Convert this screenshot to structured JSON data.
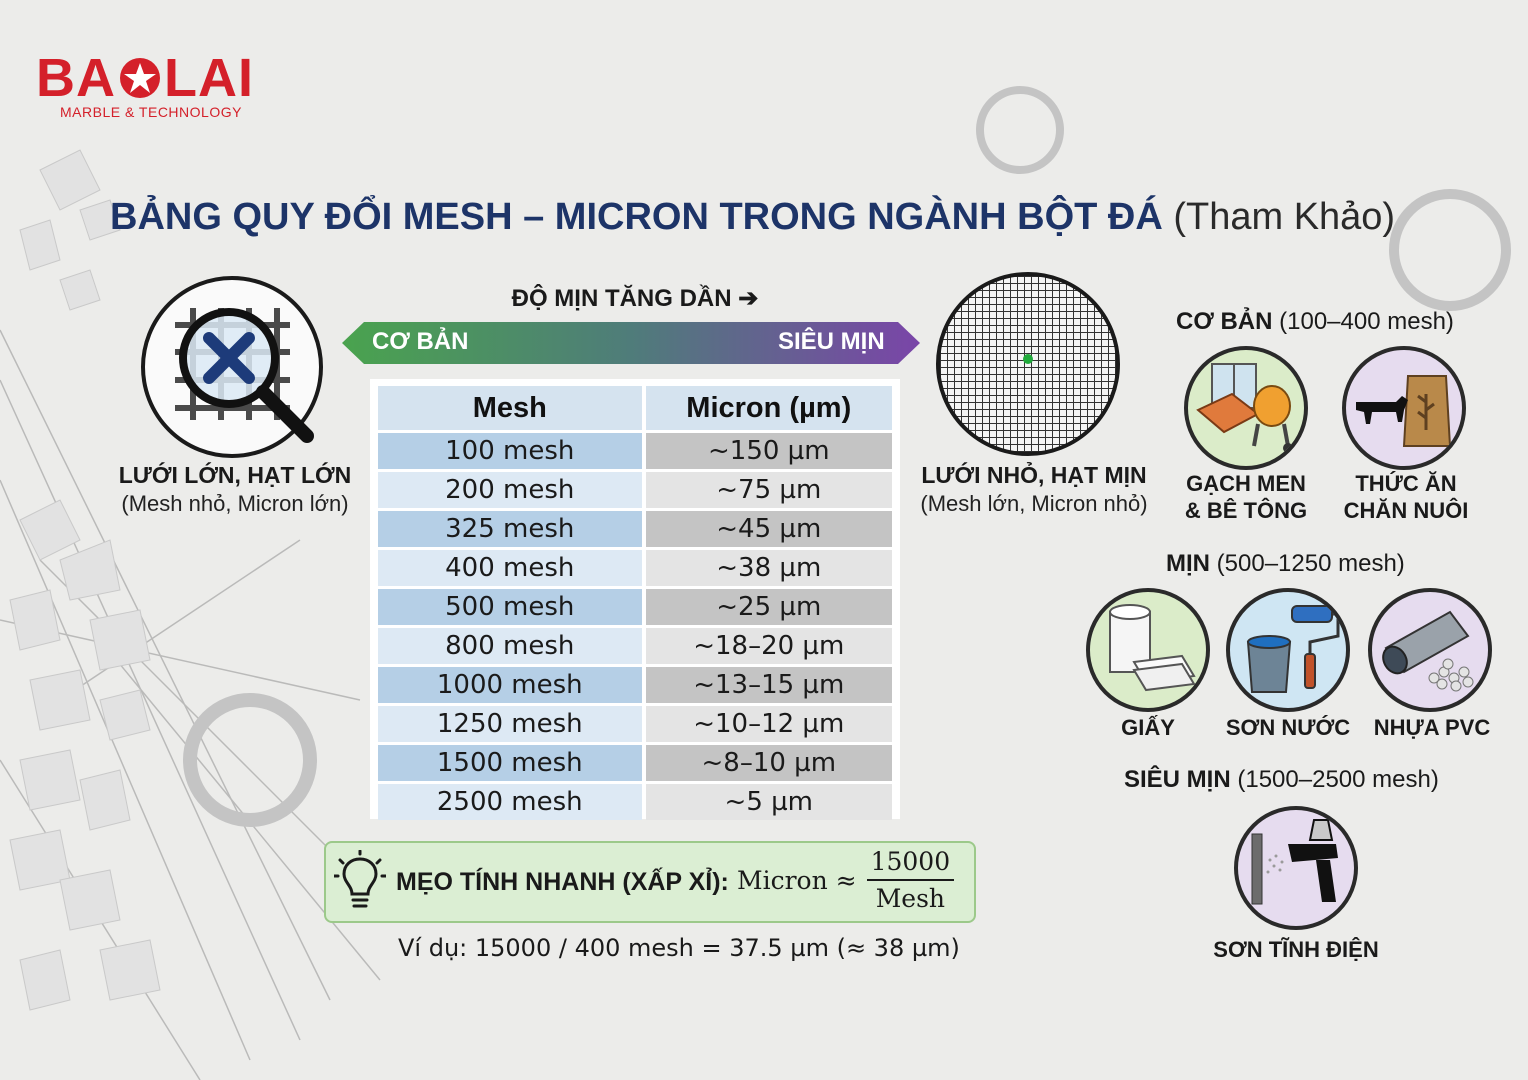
{
  "brand": {
    "name_left": "BA",
    "name_right": "LAI",
    "tagline": "MARBLE & TECHNOLOGY",
    "color": "#d4202a"
  },
  "title": {
    "main": "BẢNG QUY ĐỔI MESH – MICRON TRONG NGÀNH BỘT ĐÁ",
    "sub": "(Tham Khảo)"
  },
  "left_panel": {
    "caption_bold": "LƯỚI LỚN, HẠT LỚN",
    "caption_note": "(Mesh nhỏ, Micron lớn)",
    "icon": "magnifier-sieve-icon"
  },
  "right_panel": {
    "caption_bold": "LƯỚI NHỎ, HẠT MỊN",
    "caption_note": "(Mesh lớn, Micron nhỏ)",
    "icon": "fine-sieve-icon"
  },
  "banner": {
    "heading": "ĐỘ MỊN TĂNG DẦN ➔",
    "left": "CƠ BẢN",
    "right": "SIÊU MỊN",
    "color_start": "#4aa34e",
    "color_end": "#7a45a8"
  },
  "table": {
    "headers": [
      "Mesh",
      "Micron (µm)"
    ],
    "rows": [
      [
        "100 mesh",
        "~150 µm"
      ],
      [
        "200 mesh",
        "~75 µm"
      ],
      [
        "325 mesh",
        "~45 µm"
      ],
      [
        "400 mesh",
        "~38 µm"
      ],
      [
        "500 mesh",
        "~25 µm"
      ],
      [
        "800 mesh",
        "~18–20 µm"
      ],
      [
        "1000 mesh",
        "~13–15 µm"
      ],
      [
        "1250 mesh",
        "~10–12 µm"
      ],
      [
        "1500 mesh",
        "~8–10 µm"
      ],
      [
        "2500 mesh",
        "~5 µm"
      ]
    ]
  },
  "tip": {
    "label": "MẸO TÍNH NHANH (XẤP XỈ):",
    "formula_left": "Micron ≈",
    "numerator": "15000",
    "denominator": "Mesh",
    "example": "Ví dụ: 15000 / 400 mesh = 37.5 µm (≈ 38 µm)",
    "icon": "lightbulb-icon"
  },
  "applications": {
    "basic": {
      "heading_bold": "CƠ BẢN",
      "heading_range": "(100–400 mesh)",
      "items": [
        {
          "label_line1": "GẠCH MEN",
          "label_line2": "& BÊ TÔNG",
          "icon": "tile-concrete-mixer-icon"
        },
        {
          "label_line1": "THỨC ĂN",
          "label_line2": "CHĂN NUÔI",
          "icon": "cow-feed-bag-icon"
        }
      ]
    },
    "fine": {
      "heading_bold": "MỊN",
      "heading_range": "(500–1250 mesh)",
      "items": [
        {
          "label": "GIẤY",
          "icon": "paper-roll-icon"
        },
        {
          "label": "SƠN NƯỚC",
          "icon": "paint-bucket-roller-icon"
        },
        {
          "label": "NHỰA PVC",
          "icon": "pvc-pipe-icon"
        }
      ]
    },
    "ultra": {
      "heading_bold": "SIÊU MỊN",
      "heading_range": "(1500–2500 mesh)",
      "items": [
        {
          "label": "SƠN TĨNH ĐIỆN",
          "icon": "spray-gun-icon"
        }
      ]
    }
  }
}
